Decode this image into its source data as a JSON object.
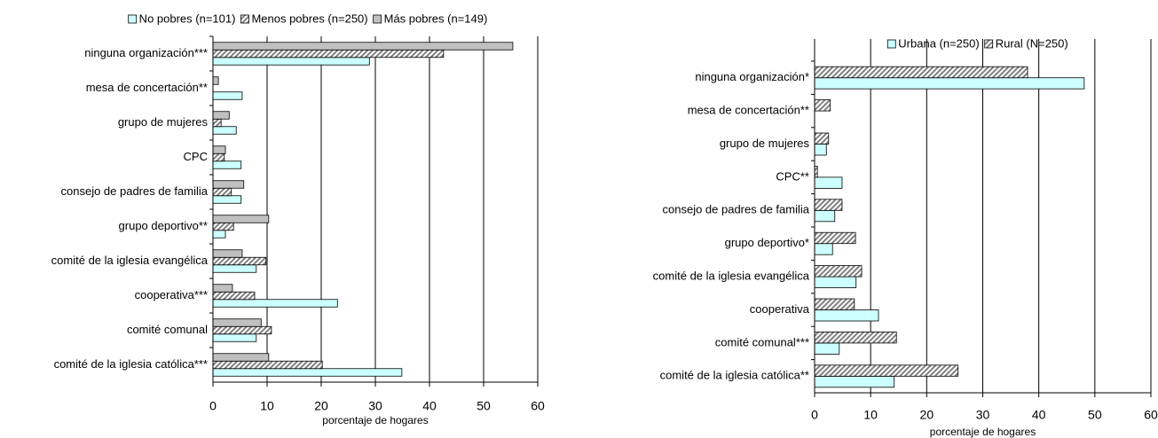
{
  "chart_data": [
    {
      "type": "bar",
      "orientation": "horizontal",
      "categories": [
        "ninguna organización***",
        "mesa de concertación**",
        "grupo de mujeres",
        "CPC",
        "consejo de padres de familia",
        "grupo deportivo**",
        "comité de la iglesia evangélica",
        "cooperativa***",
        "comité comunal",
        "comité de la iglesia católica***"
      ],
      "series": [
        {
          "name": "No pobres (n=101)",
          "color": "#ccffff",
          "values": [
            28.9,
            5.4,
            4.3,
            5.2,
            5.2,
            2.3,
            8.0,
            23.0,
            8.0,
            34.9
          ]
        },
        {
          "name": "Menos pobres (n=250)",
          "color": "#c0c0c0",
          "pattern": "hatch",
          "values": [
            42.6,
            0,
            1.5,
            2.1,
            3.4,
            3.8,
            9.8,
            7.7,
            10.8,
            20.2
          ]
        },
        {
          "name": "Más pobres (n=149)",
          "color": "#c0c0c0",
          "values": [
            55.4,
            1.0,
            3.0,
            2.3,
            5.7,
            10.3,
            5.4,
            3.6,
            8.9,
            10.3
          ]
        }
      ],
      "xlim": [
        0,
        60
      ],
      "xticks": [
        0,
        10,
        20,
        30,
        40,
        50,
        60
      ],
      "grid": true,
      "xlabel": "porcentaje de hogares"
    },
    {
      "type": "bar",
      "orientation": "horizontal",
      "categories": [
        "ninguna organización*",
        "mesa de concertación**",
        "grupo de mujeres",
        "CPC**",
        "consejo de padres de familia",
        "grupo deportivo*",
        "comité de la iglesia evangélica",
        "cooperativa",
        "comité comunal***",
        "comité de la iglesia católica**"
      ],
      "series": [
        {
          "name": "Urbana (n=250)",
          "color": "#ccffff",
          "values": [
            48.1,
            0,
            2.1,
            4.9,
            3.6,
            3.2,
            7.4,
            11.4,
            4.4,
            14.2
          ]
        },
        {
          "name": "Rural (N=250)",
          "color": "#c0c0c0",
          "pattern": "hatch",
          "values": [
            38.0,
            2.8,
            2.5,
            0.5,
            4.9,
            7.3,
            8.4,
            7.1,
            14.6,
            25.6
          ]
        }
      ],
      "xlim": [
        0,
        60
      ],
      "xticks": [
        0,
        10,
        20,
        30,
        40,
        50,
        60
      ],
      "grid": true,
      "xlabel": "porcentaje de hogares"
    }
  ]
}
